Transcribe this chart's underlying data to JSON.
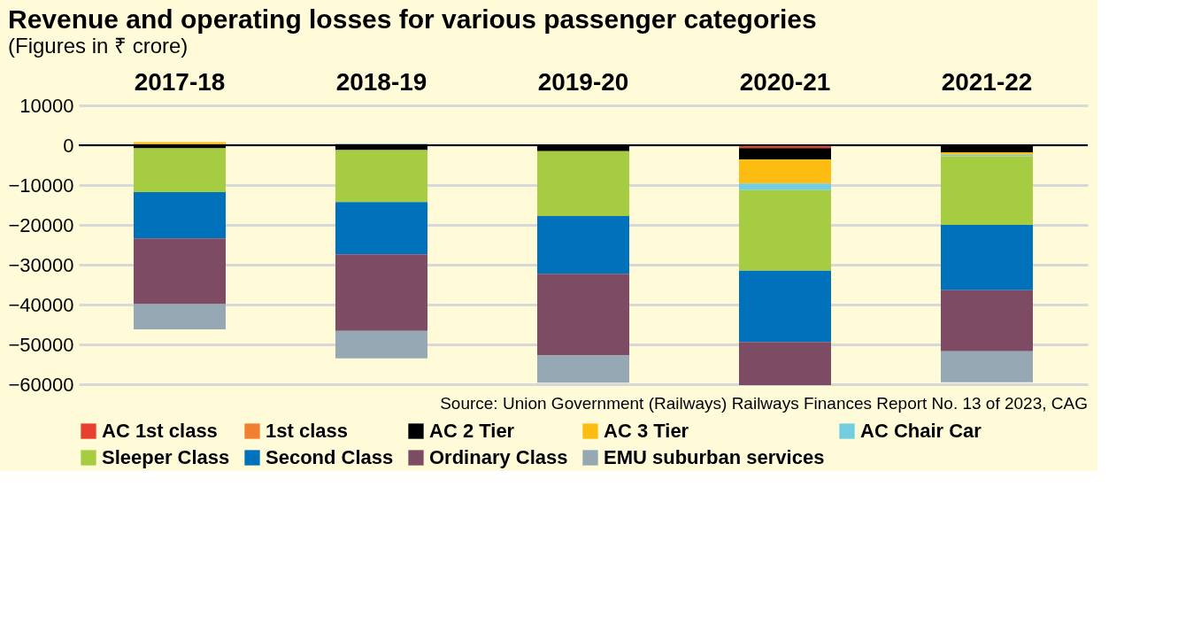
{
  "chart_data": {
    "type": "bar",
    "stacked": true,
    "title": "Revenue and operating losses for various passenger categories",
    "subtitle": "(Figures in ₹ crore)",
    "categories": [
      "2017-18",
      "2018-19",
      "2019-20",
      "2020-21",
      "2021-22"
    ],
    "series": [
      {
        "name": "AC 1st class",
        "color": "#e8402f",
        "values": [
          null,
          null,
          null,
          -700,
          null
        ]
      },
      {
        "name": "1st class",
        "color": "#f08030",
        "values": [
          null,
          null,
          null,
          null,
          null
        ]
      },
      {
        "name": "AC 2 Tier",
        "color": "#000000",
        "values": [
          -800,
          -1200,
          -1500,
          -2900,
          -1800
        ]
      },
      {
        "name": "AC 3 Tier",
        "color": "#fdbd10",
        "values": [
          800,
          null,
          null,
          -6000,
          -600
        ]
      },
      {
        "name": "AC Chair Car",
        "color": "#72cde0",
        "values": [
          null,
          400,
          null,
          -1700,
          -400
        ]
      },
      {
        "name": "Sleeper Class",
        "color": "#a6cd42",
        "values": [
          -11000,
          -13100,
          -16300,
          -20200,
          -17200
        ]
      },
      {
        "name": "Second Class",
        "color": "#0072bb",
        "values": [
          -11600,
          -13100,
          -14500,
          -17900,
          -16400
        ]
      },
      {
        "name": "Ordinary Class",
        "color": "#7e4b64",
        "values": [
          -16500,
          -19200,
          -20500,
          -10800,
          -15300
        ]
      },
      {
        "name": "EMU suburban services",
        "color": "#95a8b4",
        "values": [
          -6300,
          -6900,
          -6800,
          null,
          -7800
        ]
      }
    ],
    "ylim": [
      -60000,
      10000
    ],
    "yticks": [
      10000,
      0,
      -10000,
      -20000,
      -30000,
      -40000,
      -50000,
      -60000
    ],
    "grid": "y",
    "legend": "bottom",
    "ref_lines": [
      {
        "axis": "y",
        "value": 0,
        "color": "#000000"
      }
    ],
    "annotations": [
      "Source: Union Government (Railways) Railways Finances Report No. 13 of 2023, CAG"
    ]
  }
}
